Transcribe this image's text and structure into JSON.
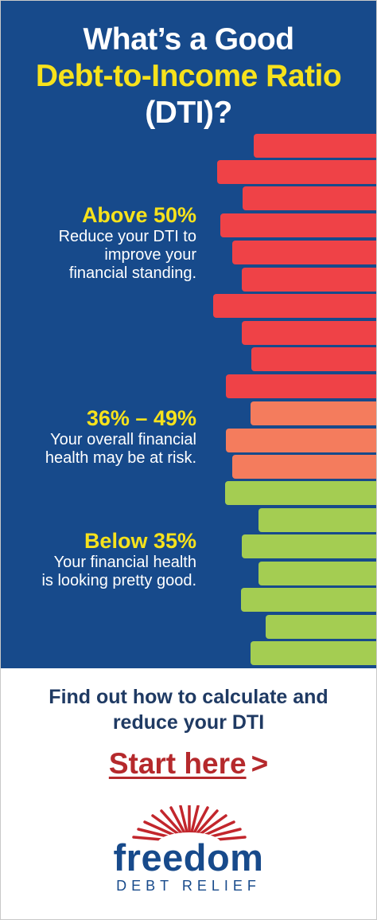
{
  "header": {
    "line1": "What’s a Good",
    "line2": "Debt-to-Income Ratio",
    "line3": "(DTI)?"
  },
  "tiers": [
    {
      "range": "Above 50%",
      "description_lines": [
        "Reduce your DTI to",
        "improve your",
        "financial standing."
      ],
      "color": "#ef4247"
    },
    {
      "range": "36% – 49%",
      "description_lines": [
        "Your overall financial",
        "health may be at risk."
      ],
      "color": "#f47c5d"
    },
    {
      "range": "Below 35%",
      "description_lines": [
        "Your financial health",
        "is looking pretty good."
      ],
      "color": "#a4cd52"
    }
  ],
  "cta": {
    "line1": "Find out how to calculate and",
    "line2": "reduce your DTI",
    "link_label": "Start here",
    "link_arrow": ">"
  },
  "logo": {
    "brand": "freedom",
    "subtitle": "DEBT RELIEF",
    "icon": "sunburst-icon"
  },
  "colors": {
    "panel": "#174a8b",
    "accent_yellow": "#f7e21c",
    "link_red": "#b5292c",
    "text_navy": "#1f3a63"
  }
}
